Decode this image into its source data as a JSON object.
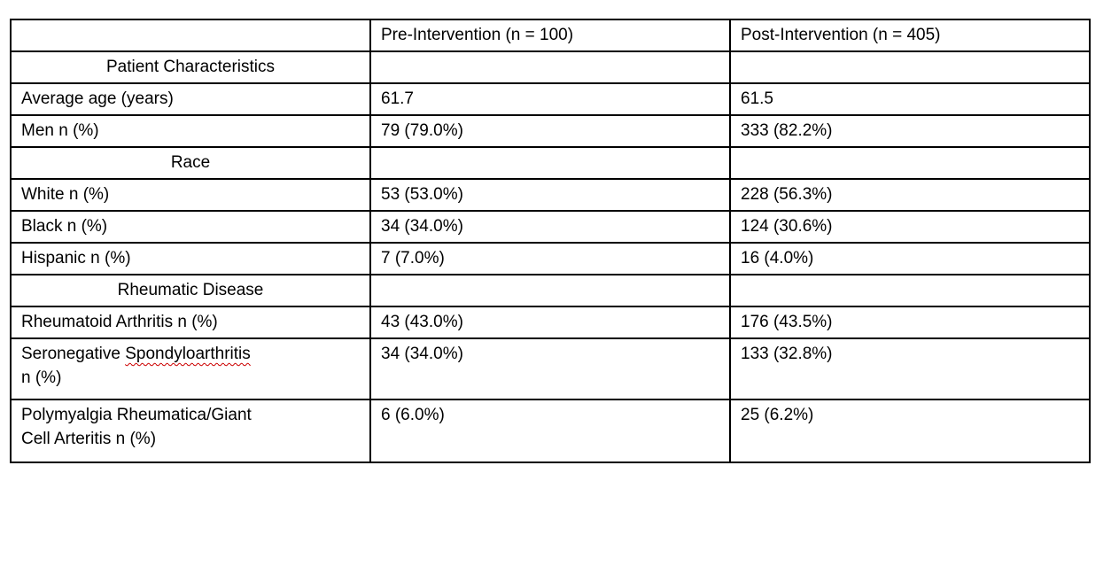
{
  "page": {
    "background_color": "#ffffff",
    "text_color": "#000000",
    "border_color": "#000000",
    "spellcheck_underline_color": "#cc0000"
  },
  "table": {
    "headers": [
      "",
      "Pre-Intervention (n = 100)",
      "Post-Intervention (n = 405)"
    ],
    "rows": [
      {
        "kind": "section",
        "label": "Patient Characteristics",
        "pre": "",
        "post": ""
      },
      {
        "kind": "data",
        "label": "Average age (years)",
        "pre": "61.7",
        "post": "61.5"
      },
      {
        "kind": "data",
        "label": "Men n (%)",
        "pre": "79 (79.0%)",
        "post": "333 (82.2%)"
      },
      {
        "kind": "section",
        "label": "Race",
        "pre": "",
        "post": ""
      },
      {
        "kind": "data",
        "label": "White n (%)",
        "pre": "53 (53.0%)",
        "post": "228 (56.3%)"
      },
      {
        "kind": "data",
        "label": "Black n (%)",
        "pre": "34 (34.0%)",
        "post": "124 (30.6%)"
      },
      {
        "kind": "data",
        "label": "Hispanic n (%)",
        "pre": "7 (7.0%)",
        "post": "16 (4.0%)"
      },
      {
        "kind": "section",
        "label": "Rheumatic Disease",
        "pre": "",
        "post": ""
      },
      {
        "kind": "data",
        "label": "Rheumatoid Arthritis n (%)",
        "pre": "43 (43.0%)",
        "post": "176 (43.5%)"
      },
      {
        "kind": "data",
        "label_line1_word1": "Seronegative ",
        "label_line1_word2_misspelled": "Spondyloarthritis",
        "label_line2": "n (%)",
        "pre": "34 (34.0%)",
        "post": "133 (32.8%)"
      },
      {
        "kind": "data",
        "label_line1": "Polymyalgia Rheumatica/Giant",
        "label_line2": "Cell Arteritis n (%)",
        "pre": "6 (6.0%)",
        "post": "25 (6.2%)"
      }
    ]
  }
}
